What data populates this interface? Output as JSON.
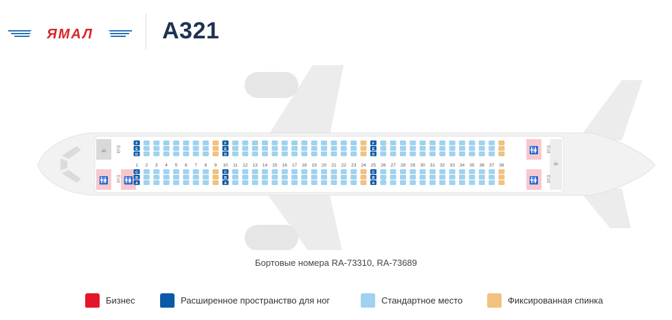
{
  "header": {
    "logo_text": "ЯМАЛ",
    "aircraft_model": "A321"
  },
  "seatmap": {
    "exit_label": "Exit",
    "column_letters_left": [
      "A",
      "B",
      "C"
    ],
    "column_letters_right": [
      "D",
      "E",
      "F"
    ],
    "rows": [
      1,
      2,
      3,
      4,
      5,
      6,
      7,
      8,
      9,
      10,
      11,
      12,
      13,
      14,
      15,
      16,
      17,
      18,
      19,
      20,
      21,
      22,
      23,
      24,
      25,
      26,
      27,
      28,
      29,
      30,
      31,
      32,
      33,
      34,
      35,
      36,
      37,
      38
    ],
    "row_types": {
      "1": "extended",
      "10": "extended",
      "25": "extended",
      "9": "fixed",
      "24": "fixed",
      "38": "fixed"
    },
    "default_type": "standard"
  },
  "caption": "Бортовые номера RA-73310, RA-73689",
  "legend": [
    {
      "label": "Бизнес",
      "color": "#e3162b"
    },
    {
      "label": "Расширенное пространство для ног",
      "color": "#0b5aa8"
    },
    {
      "label": "Стандартное место",
      "color": "#9fd2ef"
    },
    {
      "label": "Фиксированная спинка",
      "color": "#f0c27f"
    }
  ],
  "colors": {
    "standard": "#9fd2ef",
    "extended": "#0b5aa8",
    "fixed": "#f0c27f",
    "lavatory": "#f6c9cf",
    "lavatory_icon": "#d4192c",
    "galley": "#d5d5d5"
  }
}
